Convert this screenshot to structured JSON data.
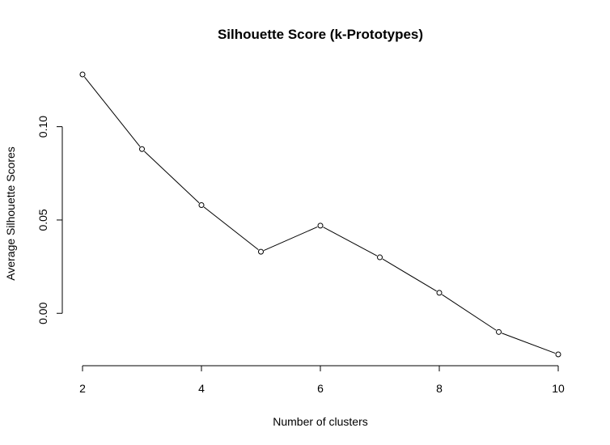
{
  "chart_data": {
    "type": "line",
    "title": "Silhouette Score (k-Prototypes)",
    "xlabel": "Number of clusters",
    "ylabel": "Average Silhouette Scores",
    "x": [
      2,
      3,
      4,
      5,
      6,
      7,
      8,
      9,
      10
    ],
    "series": [
      {
        "values": [
          0.128,
          0.088,
          0.058,
          0.033,
          0.047,
          0.03,
          0.011,
          -0.01,
          -0.022
        ]
      }
    ],
    "xlim": [
      2,
      10
    ],
    "ylim": [
      -0.022,
      0.128
    ],
    "xticks": [
      2,
      4,
      6,
      8,
      10
    ],
    "yticks": [
      0.0,
      0.05,
      0.1
    ],
    "xtick_labels": [
      "2",
      "4",
      "6",
      "8",
      "10"
    ],
    "ytick_labels": [
      "0.00",
      "0.05",
      "0.10"
    ],
    "marker": "open-circle",
    "line_color": "#000000",
    "grid": false
  }
}
